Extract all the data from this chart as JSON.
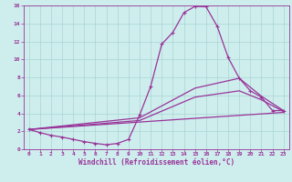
{
  "xlabel": "Windchill (Refroidissement éolien,°C)",
  "background_color": "#ceeeed",
  "grid_color": "#aad4d4",
  "line_color": "#993399",
  "xlim": [
    -0.5,
    23.5
  ],
  "ylim": [
    0,
    16
  ],
  "xticks": [
    0,
    1,
    2,
    3,
    4,
    5,
    6,
    7,
    8,
    9,
    10,
    11,
    12,
    13,
    14,
    15,
    16,
    17,
    18,
    19,
    20,
    21,
    22,
    23
  ],
  "yticks": [
    0,
    2,
    4,
    6,
    8,
    10,
    12,
    14,
    16
  ],
  "line1_x": [
    0,
    1,
    2,
    3,
    4,
    5,
    6,
    7,
    8,
    9,
    10,
    11,
    12,
    13,
    14,
    15,
    16,
    17,
    18,
    19,
    20,
    21,
    22,
    23
  ],
  "line1_y": [
    2.2,
    1.85,
    1.55,
    1.35,
    1.1,
    0.85,
    0.65,
    0.5,
    0.65,
    1.1,
    3.8,
    7.0,
    11.7,
    13.0,
    15.2,
    15.9,
    15.85,
    13.7,
    10.2,
    7.9,
    6.5,
    5.8,
    4.3,
    4.3
  ],
  "line2_x": [
    0,
    10,
    15,
    19,
    21,
    23
  ],
  "line2_y": [
    2.2,
    3.5,
    6.8,
    7.9,
    5.9,
    4.3
  ],
  "line3_x": [
    0,
    10,
    15,
    19,
    21,
    23
  ],
  "line3_y": [
    2.2,
    3.2,
    5.8,
    6.5,
    5.5,
    4.2
  ],
  "line4_x": [
    0,
    23
  ],
  "line4_y": [
    2.2,
    4.1
  ],
  "markersize": 2.5,
  "linewidth": 0.9,
  "tick_fontsize": 4.5,
  "xlabel_fontsize": 5.5
}
